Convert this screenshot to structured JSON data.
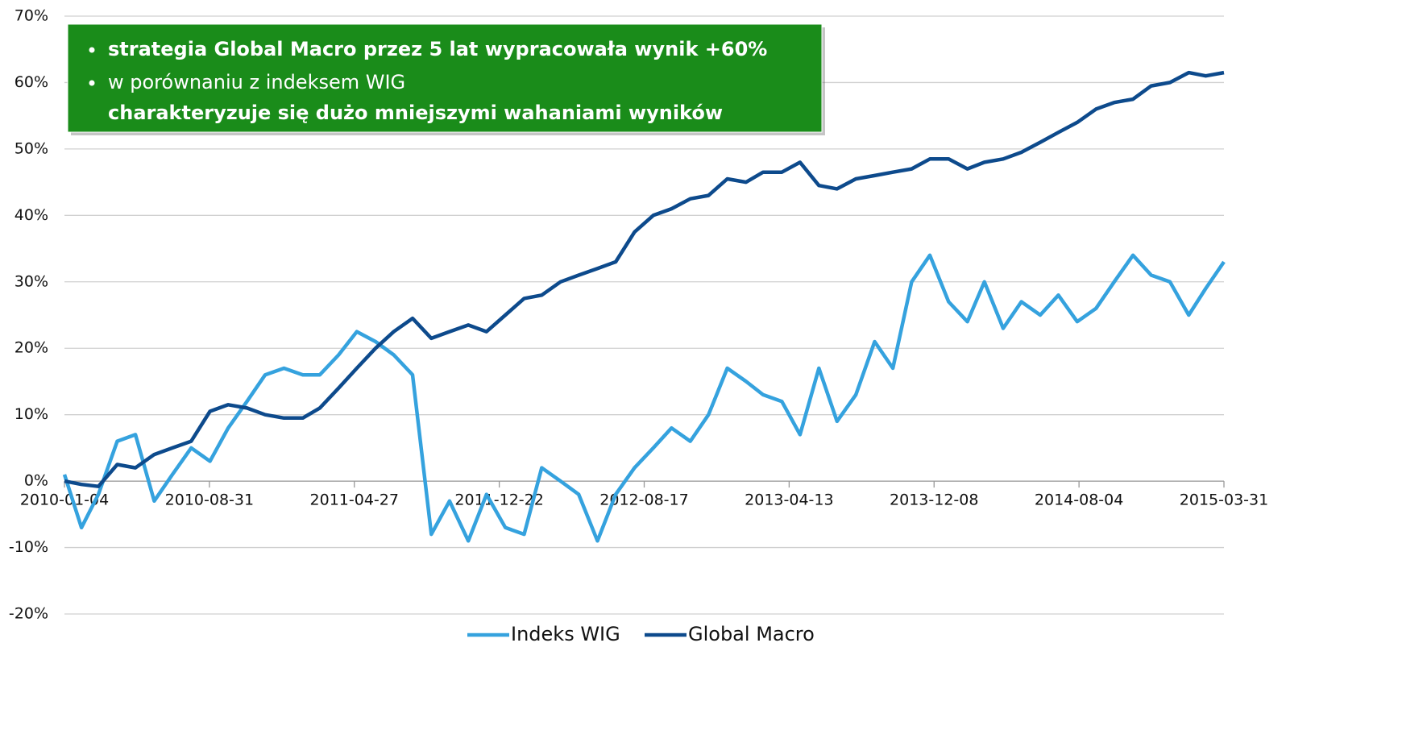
{
  "chart_data": {
    "type": "line",
    "annotations": [
      "strategia Global Macro przez 5 lat wypracowała wynik +60%",
      "w porównaniu z indeksem WIG",
      "charakteryzuje się dużo mniejszymi wahaniami wyników"
    ],
    "x": [
      "2010-01-04",
      "2010-02-01",
      "2010-03-01",
      "2010-04-01",
      "2010-05-01",
      "2010-06-01",
      "2010-07-01",
      "2010-08-01",
      "2010-09-01",
      "2010-10-01",
      "2010-11-01",
      "2010-12-01",
      "2011-01-01",
      "2011-02-01",
      "2011-03-01",
      "2011-04-01",
      "2011-05-01",
      "2011-06-01",
      "2011-07-01",
      "2011-08-01",
      "2011-09-01",
      "2011-10-01",
      "2011-11-01",
      "2011-12-01",
      "2012-01-01",
      "2012-02-01",
      "2012-03-01",
      "2012-04-01",
      "2012-05-01",
      "2012-06-01",
      "2012-07-01",
      "2012-08-01",
      "2012-09-01",
      "2012-10-01",
      "2012-11-01",
      "2012-12-01",
      "2013-01-01",
      "2013-02-01",
      "2013-03-01",
      "2013-04-01",
      "2013-05-01",
      "2013-06-01",
      "2013-07-01",
      "2013-08-01",
      "2013-09-01",
      "2013-10-01",
      "2013-11-01",
      "2013-12-01",
      "2014-01-01",
      "2014-02-01",
      "2014-03-01",
      "2014-04-01",
      "2014-05-01",
      "2014-06-01",
      "2014-07-01",
      "2014-08-01",
      "2014-09-01",
      "2014-10-01",
      "2014-11-01",
      "2014-12-01",
      "2015-01-01",
      "2015-02-01",
      "2015-03-01",
      "2015-03-31"
    ],
    "series": [
      {
        "name": "Indeks WIG",
        "color": "#35a2de",
        "values": [
          1,
          -7,
          -2,
          6,
          7,
          -3,
          1,
          5,
          3,
          8,
          12,
          16,
          17,
          16,
          16,
          19,
          22.5,
          21,
          19,
          16,
          -8,
          -3,
          -9,
          -2,
          -7,
          -8,
          2,
          0,
          -2,
          -9,
          -2,
          2,
          5,
          8,
          6,
          10,
          17,
          15,
          13,
          12,
          7,
          17,
          9,
          13,
          21,
          17,
          30,
          34,
          27,
          24,
          30,
          23,
          27,
          25,
          28,
          24,
          26,
          30,
          34,
          31,
          30,
          25,
          29,
          33
        ]
      },
      {
        "name": "Global Macro",
        "color": "#0d4a8c",
        "values": [
          0,
          -0.5,
          -0.8,
          2.5,
          2,
          4,
          5,
          6,
          10.5,
          11.5,
          11,
          10,
          9.5,
          9.5,
          11,
          14,
          17,
          20,
          22.5,
          24.5,
          21.5,
          22.5,
          23.5,
          22.5,
          25,
          27.5,
          28,
          30,
          31,
          32,
          33,
          37.5,
          40,
          41,
          42.5,
          43,
          45.5,
          45,
          46.5,
          46.5,
          48,
          44.5,
          44,
          45.5,
          46,
          46.5,
          47,
          48.5,
          48.5,
          47,
          48,
          48.5,
          49.5,
          51,
          52.5,
          54,
          56,
          57,
          57.5,
          59.5,
          60,
          61.5,
          61,
          61.5
        ]
      }
    ],
    "xlim": [
      "2010-01-04",
      "2015-03-31"
    ],
    "xticks": [
      "2010-01-04",
      "2010-08-31",
      "2011-04-27",
      "2011-12-22",
      "2012-08-17",
      "2013-04-13",
      "2013-12-08",
      "2014-08-04",
      "2015-03-31"
    ],
    "ylim": [
      -20,
      70
    ],
    "yticks": [
      {
        "value": -20,
        "label": "-20%"
      },
      {
        "value": -10,
        "label": "-10%"
      },
      {
        "value": 0,
        "label": "0%"
      },
      {
        "value": 10,
        "label": "10%"
      },
      {
        "value": 20,
        "label": "20%"
      },
      {
        "value": 30,
        "label": "30%"
      },
      {
        "value": 40,
        "label": "40%"
      },
      {
        "value": 50,
        "label": "50%"
      },
      {
        "value": 60,
        "label": "60%"
      },
      {
        "value": 70,
        "label": "70%"
      }
    ],
    "grid": true,
    "legend": "bottom",
    "annotation_color": "#1a8c1a"
  }
}
